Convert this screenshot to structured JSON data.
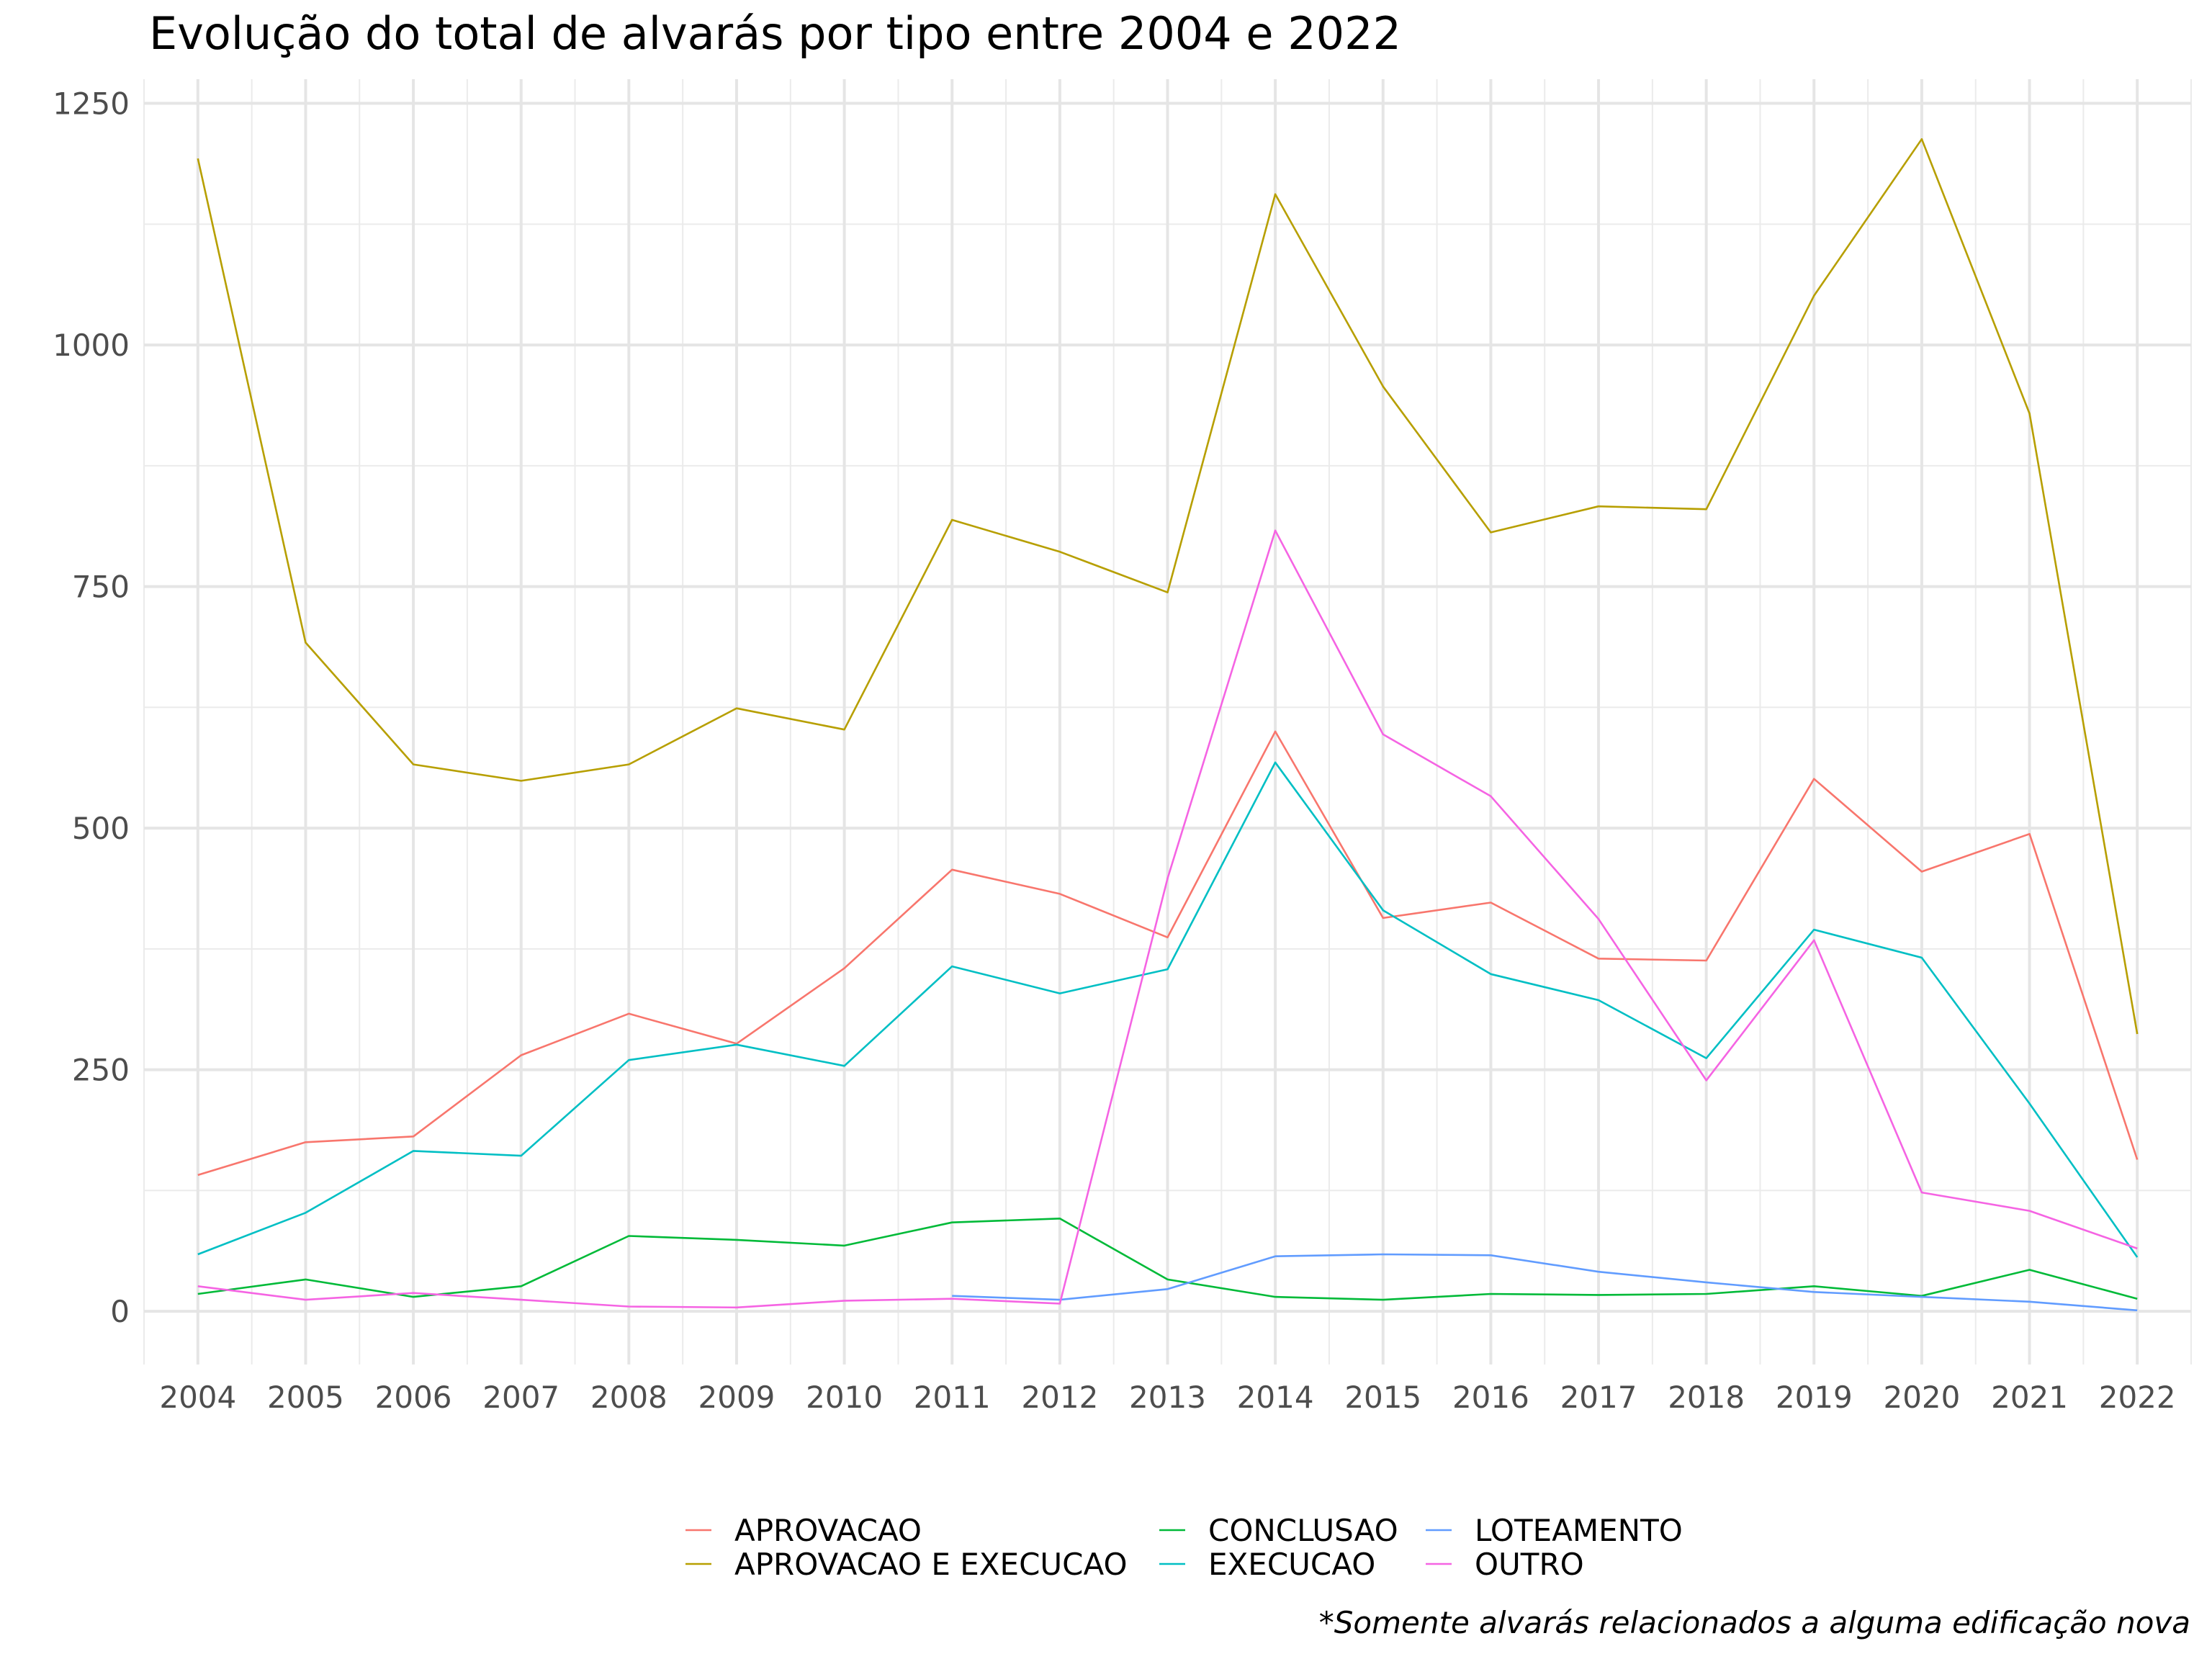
{
  "chart_data": {
    "type": "line",
    "title": "Evolução do total de alvarás por tipo entre 2004 e 2022",
    "xlabel": "",
    "ylabel": "",
    "caption": "*Somente alvarás relacionados a alguma edificação nova",
    "x": [
      2004,
      2005,
      2006,
      2007,
      2008,
      2009,
      2010,
      2011,
      2012,
      2013,
      2014,
      2015,
      2016,
      2017,
      2018,
      2019,
      2020,
      2021,
      2022
    ],
    "x_ticks": [
      "2004",
      "2005",
      "2006",
      "2007",
      "2008",
      "2009",
      "2010",
      "2011",
      "2012",
      "2013",
      "2014",
      "2015",
      "2016",
      "2017",
      "2018",
      "2019",
      "2020",
      "2021",
      "2022"
    ],
    "y_ticks": [
      0,
      250,
      500,
      750,
      1000,
      1250
    ],
    "y_tick_labels": [
      "0",
      "250",
      "500",
      "750",
      "1000",
      "1250"
    ],
    "xlim": [
      2003.5,
      2022.5
    ],
    "ylim": [
      -55,
      1275
    ],
    "grid": true,
    "legend_position": "bottom",
    "series": [
      {
        "name": "APROVACAO",
        "color": "#F8766D",
        "values": [
          141,
          175,
          181,
          265,
          308,
          277,
          355,
          457,
          432,
          387,
          600,
          407,
          423,
          365,
          363,
          551,
          455,
          494,
          157
        ]
      },
      {
        "name": "APROVACAO E EXECUCAO",
        "color": "#B79F00",
        "values": [
          1193,
          692,
          566,
          549,
          566,
          624,
          602,
          819,
          786,
          744,
          1156,
          957,
          806,
          833,
          830,
          1051,
          1213,
          929,
          287
        ]
      },
      {
        "name": "CONCLUSAO",
        "color": "#00BA38",
        "values": [
          18,
          33,
          15,
          26,
          78,
          74,
          68,
          92,
          96,
          33,
          15,
          12,
          18,
          17,
          18,
          26,
          16,
          43,
          13
        ]
      },
      {
        "name": "EXECUCAO",
        "color": "#00BFC4",
        "values": [
          59,
          102,
          166,
          161,
          260,
          276,
          254,
          357,
          329,
          354,
          568,
          415,
          349,
          322,
          262,
          395,
          366,
          215,
          56
        ]
      },
      {
        "name": "LOTEAMENTO",
        "color": "#619CFF",
        "values": [
          null,
          null,
          null,
          null,
          null,
          null,
          null,
          16,
          12,
          23,
          57,
          59,
          58,
          41,
          30,
          20,
          15,
          10,
          1
        ]
      },
      {
        "name": "OUTRO",
        "color": "#F564E3",
        "values": [
          26,
          12,
          19,
          12,
          5,
          4,
          11,
          13,
          8,
          448,
          808,
          597,
          533,
          406,
          239,
          384,
          123,
          104,
          65
        ]
      }
    ]
  }
}
